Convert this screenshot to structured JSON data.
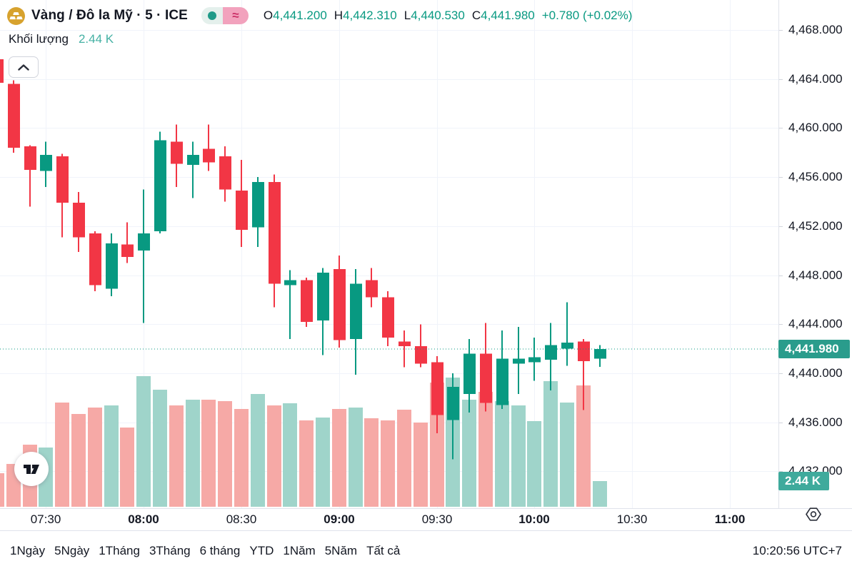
{
  "header": {
    "title": "Vàng / Đô la Mỹ · 5 · ICE",
    "symbol_icon": "gold-ingots-icon",
    "indicators": {
      "dot": "●",
      "approx": "≈"
    },
    "ohlc": {
      "o_label": "O",
      "o": "4,441.200",
      "h_label": "H",
      "h": "4,442.310",
      "l_label": "L",
      "l": "4,440.530",
      "c_label": "C",
      "c": "4,441.980",
      "change": "+0.780 (+0.02%)"
    },
    "legend_volume_label": "Khối lượng",
    "legend_volume_value": "2.44 K"
  },
  "badges": {
    "price": "4,441.980",
    "volume": "2.44 K"
  },
  "toolbar": {
    "items": [
      "1Ngày",
      "5Ngày",
      "1Tháng",
      "3Tháng",
      "6 tháng",
      "YTD",
      "1Năm",
      "5Năm",
      "Tất cả"
    ],
    "clock": "10:20:56 UTC+7"
  },
  "colors": {
    "up": "#089981",
    "down": "#f23645",
    "volume_up": "#9fd4ca",
    "volume_down": "#f6a9a6",
    "price_badge_bg": "#2a9c8c",
    "volume_badge_bg": "#3faa9c",
    "grid": "#f0f3fa",
    "price_line": "#089981",
    "text": "#131722",
    "axis_border": "#e0e3eb",
    "gold_icon_bg": "#d7a22e",
    "indicator_dot": "#1f9a88",
    "pill_left_bg": "#e4f0ec",
    "pill_right_bg": "#f2a2bd",
    "pill_approx": "#cb2f66"
  },
  "chart_data": {
    "type": "candlestick_with_volume",
    "title": "Vàng / Đô la Mỹ · 5 · ICE",
    "interval_minutes": 5,
    "last_price": 4441.98,
    "price_axis_ticks": [
      {
        "value": 4468,
        "label": "4,468.000"
      },
      {
        "value": 4464,
        "label": "4,464.000"
      },
      {
        "value": 4460,
        "label": "4,460.000"
      },
      {
        "value": 4456,
        "label": "4,456.000"
      },
      {
        "value": 4452,
        "label": "4,452.000"
      },
      {
        "value": 4448,
        "label": "4,448.000"
      },
      {
        "value": 4444,
        "label": "4,444.000"
      },
      {
        "value": 4440,
        "label": "4,440.000"
      },
      {
        "value": 4436,
        "label": "4,436.000"
      },
      {
        "value": 4432,
        "label": "4,432.000"
      }
    ],
    "time_ticks": [
      {
        "label": "07:30",
        "index": 3,
        "bold": false
      },
      {
        "label": "08:00",
        "index": 9,
        "bold": true
      },
      {
        "label": "08:30",
        "index": 15,
        "bold": false
      },
      {
        "label": "09:00",
        "index": 21,
        "bold": true
      },
      {
        "label": "09:30",
        "index": 27,
        "bold": false
      },
      {
        "label": "10:00",
        "index": 33,
        "bold": true
      },
      {
        "label": "10:30",
        "index": 39,
        "bold": false
      },
      {
        "label": "11:00",
        "index": 45,
        "bold": true
      }
    ],
    "volume_unit": "K",
    "candles": [
      {
        "t": "07:15",
        "o": 4465.6,
        "h": 4465.6,
        "l": 4463.7,
        "c": 4463.7,
        "v": 3.2
      },
      {
        "t": "07:20",
        "o": 4463.6,
        "h": 4463.9,
        "l": 4458.0,
        "c": 4458.4,
        "v": 4.1
      },
      {
        "t": "07:25",
        "o": 4458.5,
        "h": 4458.6,
        "l": 4453.6,
        "c": 4456.6,
        "v": 5.9
      },
      {
        "t": "07:30",
        "o": 4456.5,
        "h": 4458.9,
        "l": 4455.2,
        "c": 4457.8,
        "v": 5.6
      },
      {
        "t": "07:35",
        "o": 4457.7,
        "h": 4457.9,
        "l": 4451.1,
        "c": 4453.9,
        "v": 9.9
      },
      {
        "t": "07:40",
        "o": 4453.9,
        "h": 4454.8,
        "l": 4449.9,
        "c": 4451.1,
        "v": 8.8
      },
      {
        "t": "07:45",
        "o": 4451.4,
        "h": 4451.6,
        "l": 4446.7,
        "c": 4447.2,
        "v": 9.4
      },
      {
        "t": "07:50",
        "o": 4446.9,
        "h": 4451.4,
        "l": 4446.3,
        "c": 4450.6,
        "v": 9.6
      },
      {
        "t": "07:55",
        "o": 4450.5,
        "h": 4452.3,
        "l": 4449.0,
        "c": 4449.5,
        "v": 7.5
      },
      {
        "t": "08:00",
        "o": 4450.0,
        "h": 4455.0,
        "l": 4444.1,
        "c": 4451.4,
        "v": 12.4
      },
      {
        "t": "08:05",
        "o": 4451.6,
        "h": 4459.7,
        "l": 4451.4,
        "c": 4459.0,
        "v": 11.1
      },
      {
        "t": "08:10",
        "o": 4458.9,
        "h": 4460.3,
        "l": 4455.2,
        "c": 4457.1,
        "v": 9.6
      },
      {
        "t": "08:15",
        "o": 4457.0,
        "h": 4458.9,
        "l": 4454.3,
        "c": 4457.8,
        "v": 10.2
      },
      {
        "t": "08:20",
        "o": 4458.3,
        "h": 4460.3,
        "l": 4456.5,
        "c": 4457.2,
        "v": 10.2
      },
      {
        "t": "08:25",
        "o": 4457.7,
        "h": 4458.5,
        "l": 4454.0,
        "c": 4455.0,
        "v": 10.0
      },
      {
        "t": "08:30",
        "o": 4454.9,
        "h": 4457.4,
        "l": 4450.3,
        "c": 4451.7,
        "v": 9.3
      },
      {
        "t": "08:35",
        "o": 4451.9,
        "h": 4456.0,
        "l": 4450.3,
        "c": 4455.6,
        "v": 10.7
      },
      {
        "t": "08:40",
        "o": 4455.6,
        "h": 4456.2,
        "l": 4445.4,
        "c": 4447.3,
        "v": 9.6
      },
      {
        "t": "08:45",
        "o": 4447.2,
        "h": 4448.4,
        "l": 4442.8,
        "c": 4447.6,
        "v": 9.8
      },
      {
        "t": "08:50",
        "o": 4447.6,
        "h": 4447.8,
        "l": 4443.8,
        "c": 4444.2,
        "v": 8.2
      },
      {
        "t": "08:55",
        "o": 4444.3,
        "h": 4448.6,
        "l": 4441.5,
        "c": 4448.2,
        "v": 8.5
      },
      {
        "t": "09:00",
        "o": 4448.5,
        "h": 4449.6,
        "l": 4442.1,
        "c": 4442.7,
        "v": 9.3
      },
      {
        "t": "09:05",
        "o": 4442.8,
        "h": 4448.5,
        "l": 4439.9,
        "c": 4447.3,
        "v": 9.4
      },
      {
        "t": "09:10",
        "o": 4447.6,
        "h": 4448.6,
        "l": 4445.4,
        "c": 4446.2,
        "v": 8.4
      },
      {
        "t": "09:15",
        "o": 4446.2,
        "h": 4446.7,
        "l": 4442.2,
        "c": 4442.9,
        "v": 8.2
      },
      {
        "t": "09:20",
        "o": 4442.6,
        "h": 4443.5,
        "l": 4440.5,
        "c": 4442.2,
        "v": 9.2
      },
      {
        "t": "09:25",
        "o": 4442.2,
        "h": 4444.0,
        "l": 4440.5,
        "c": 4440.8,
        "v": 8.0
      },
      {
        "t": "09:30",
        "o": 4440.9,
        "h": 4441.4,
        "l": 4435.1,
        "c": 4436.6,
        "v": 11.8
      },
      {
        "t": "09:35",
        "o": 4436.2,
        "h": 4440.0,
        "l": 4433.0,
        "c": 4438.9,
        "v": 12.3
      },
      {
        "t": "09:40",
        "o": 4438.3,
        "h": 4442.8,
        "l": 4436.8,
        "c": 4441.6,
        "v": 10.2
      },
      {
        "t": "09:45",
        "o": 4441.6,
        "h": 4444.1,
        "l": 4436.9,
        "c": 4437.6,
        "v": 10.9
      },
      {
        "t": "09:50",
        "o": 4437.4,
        "h": 4443.5,
        "l": 4437.1,
        "c": 4441.2,
        "v": 10.0
      },
      {
        "t": "09:55",
        "o": 4440.8,
        "h": 4443.8,
        "l": 4438.3,
        "c": 4441.2,
        "v": 9.6
      },
      {
        "t": "10:00",
        "o": 4440.9,
        "h": 4442.9,
        "l": 4439.4,
        "c": 4441.3,
        "v": 8.1
      },
      {
        "t": "10:05",
        "o": 4441.1,
        "h": 4444.1,
        "l": 4438.6,
        "c": 4442.3,
        "v": 11.9
      },
      {
        "t": "10:10",
        "o": 4442.0,
        "h": 4445.8,
        "l": 4440.6,
        "c": 4442.5,
        "v": 9.9
      },
      {
        "t": "10:15",
        "o": 4442.6,
        "h": 4442.8,
        "l": 4437.0,
        "c": 4441.0,
        "v": 11.5
      },
      {
        "t": "10:20",
        "o": 4441.2,
        "h": 4442.31,
        "l": 4440.53,
        "c": 4441.98,
        "v": 2.44
      }
    ]
  }
}
